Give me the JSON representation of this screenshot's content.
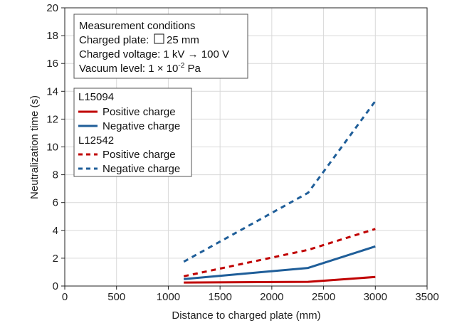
{
  "chart_data": {
    "type": "line",
    "xlabel": "Distance to charged plate (mm)",
    "ylabel": "Neutralization time (s)",
    "xlim": [
      0,
      3500
    ],
    "ylim": [
      0,
      20
    ],
    "xticks": [
      "0",
      "500",
      "1000",
      "1500",
      "2000",
      "2500",
      "3000",
      "3500"
    ],
    "yticks": [
      "0",
      "2",
      "4",
      "6",
      "8",
      "10",
      "12",
      "14",
      "16",
      "18",
      "20"
    ],
    "grid": true,
    "conditions": {
      "title": "Measurement conditions",
      "plate_prefix": "Charged plate: ",
      "plate_value": "25 mm",
      "voltage": "Charged voltage: 1 kV → 100 V",
      "vacuum_prefix": "Vacuum level: 1 × 10",
      "vacuum_exp": "-2",
      "vacuum_suffix": " Pa"
    },
    "legend": {
      "group1": "L15094",
      "group2": "L12542",
      "pos1": "Positive charge",
      "neg1": "Negative charge",
      "pos2": "Positive charge",
      "neg2": "Negative charge"
    },
    "colors": {
      "positive": "#c00000",
      "negative": "#1f5e99"
    },
    "series": [
      {
        "name": "Positive charge",
        "group": "L15094",
        "dashed": false,
        "color": "#c00000",
        "x": [
          1150,
          2350,
          3000
        ],
        "y": [
          0.25,
          0.3,
          0.65
        ]
      },
      {
        "name": "Negative charge",
        "group": "L15094",
        "dashed": false,
        "color": "#1f5e99",
        "x": [
          1150,
          2350,
          3000
        ],
        "y": [
          0.5,
          1.3,
          2.85
        ]
      },
      {
        "name": "Positive charge",
        "group": "L12542",
        "dashed": true,
        "color": "#c00000",
        "x": [
          1150,
          2350,
          3000
        ],
        "y": [
          0.7,
          2.6,
          4.1
        ]
      },
      {
        "name": "Negative charge",
        "group": "L12542",
        "dashed": true,
        "color": "#1f5e99",
        "x": [
          1150,
          2350,
          3000
        ],
        "y": [
          1.75,
          6.7,
          13.3
        ]
      }
    ]
  }
}
